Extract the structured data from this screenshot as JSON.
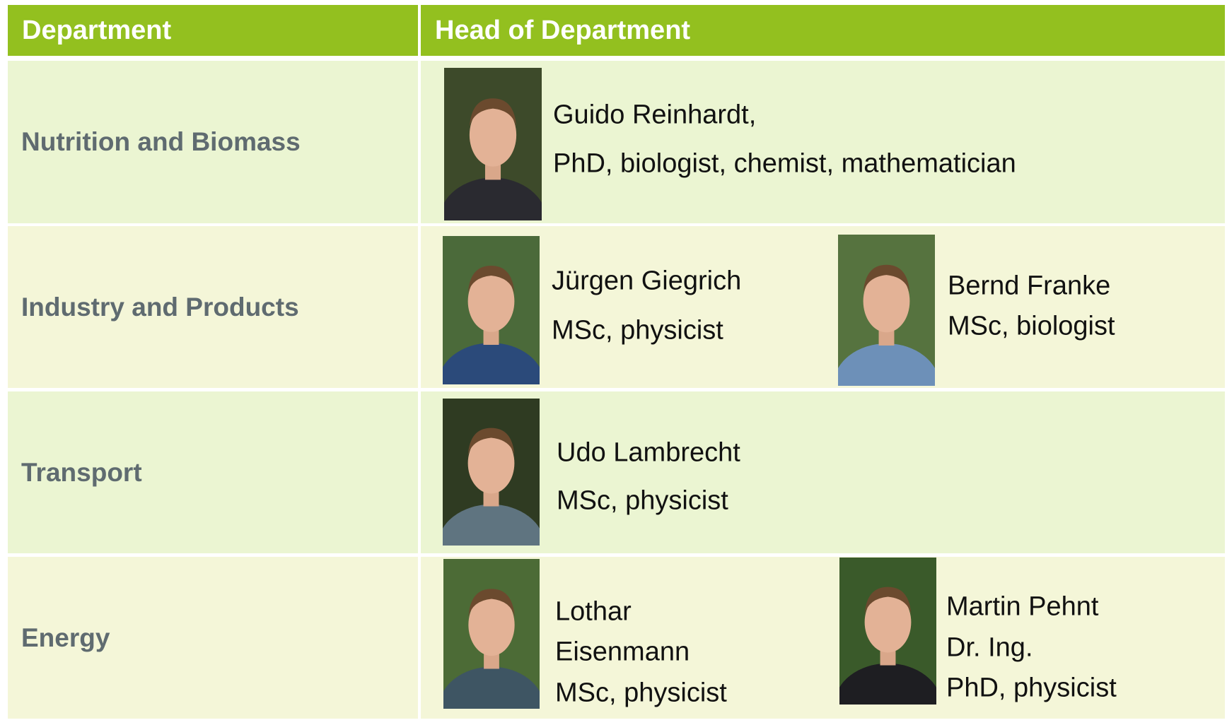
{
  "table": {
    "header": [
      "Department",
      "Head of Department"
    ],
    "rows": [
      {
        "department": "Nutrition and Biomass",
        "heads": [
          {
            "lines": [
              "Guido Reinhardt,",
              "PhD, biologist, chemist, mathematician"
            ]
          }
        ]
      },
      {
        "department": "Industry and Products",
        "heads": [
          {
            "lines": [
              "Jürgen Giegrich",
              "MSc, physicist"
            ]
          },
          {
            "lines": [
              "Bernd Franke",
              "MSc, biologist"
            ]
          }
        ]
      },
      {
        "department": "Transport",
        "heads": [
          {
            "lines": [
              "Udo Lambrecht",
              "MSc, physicist"
            ]
          }
        ]
      },
      {
        "department": "Energy",
        "heads": [
          {
            "lines": [
              "Lothar",
              "Eisenmann",
              "MSc, physicist"
            ]
          },
          {
            "lines": [
              "Martin Pehnt",
              "Dr. Ing.",
              "PhD, physicist"
            ]
          }
        ]
      }
    ]
  }
}
